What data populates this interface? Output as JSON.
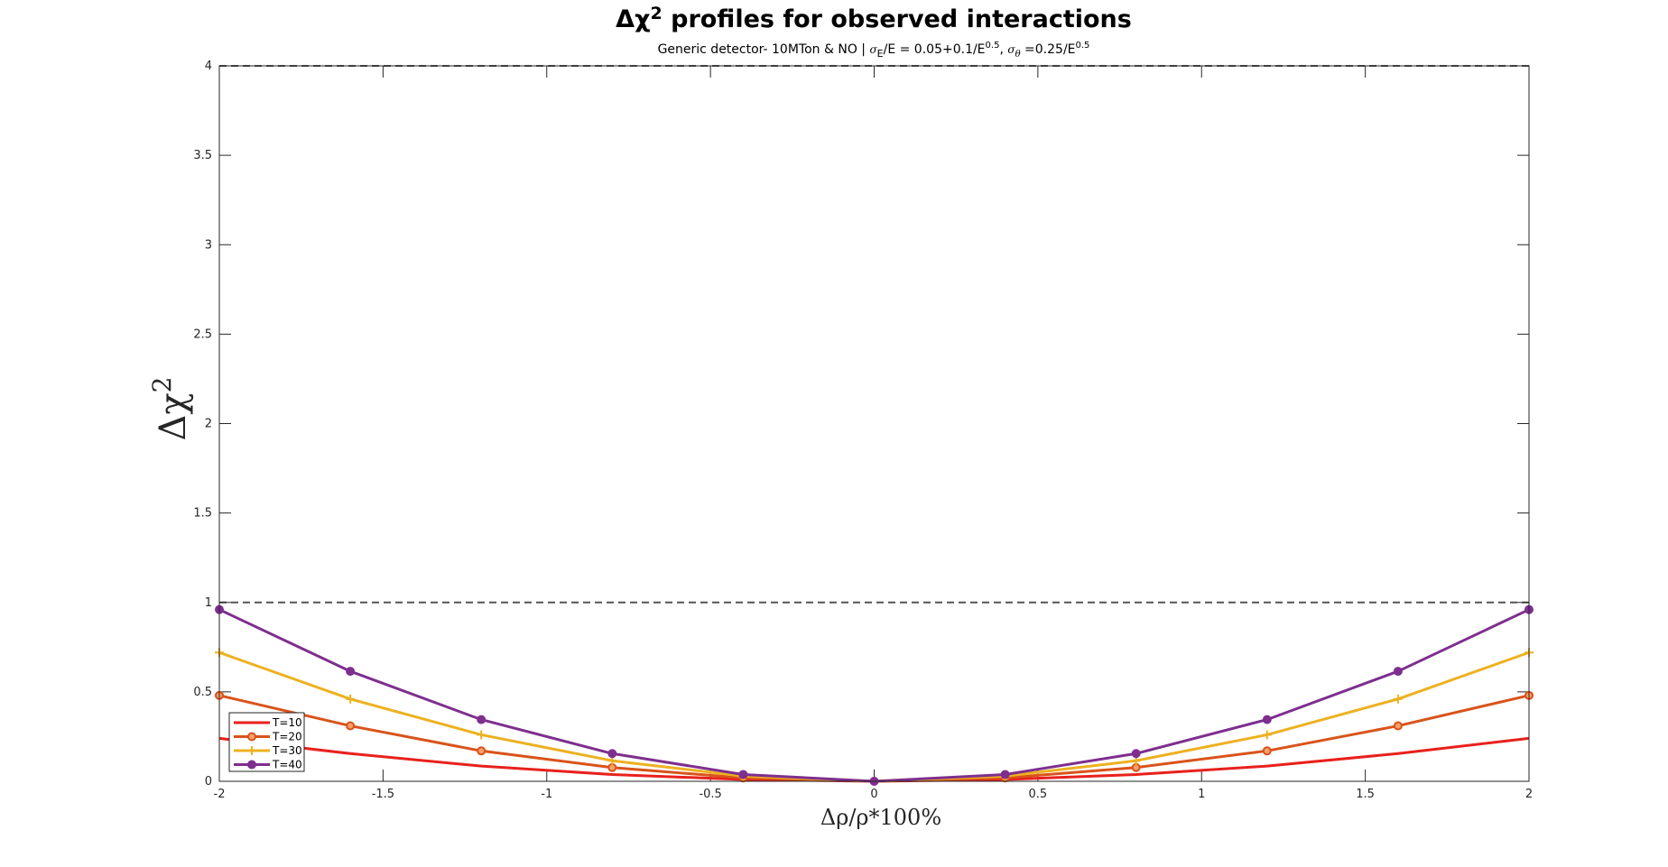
{
  "chart_data": {
    "type": "line",
    "title_prefix": "Δχ",
    "title_sup": "2",
    "title_rest": " profiles for observed interactions",
    "subtitle": {
      "part1": "Generic detector- 10MTon & NO | ",
      "sigma": "σ",
      "sub_E": "E",
      "part2": "/E = 0.05+0.1/E",
      "sup1": "0.5",
      "part3": ", ",
      "sub_theta": "θ",
      "part4": " =0.25/E",
      "sup2": "0.5"
    },
    "xlabel": "Δρ/ρ*100%",
    "ylabel": "Δχ",
    "ylabel_sup": "2",
    "xlim": [
      -2,
      2
    ],
    "ylim": [
      0,
      4
    ],
    "xticks": [
      -2,
      -1.5,
      -1,
      -0.5,
      0,
      0.5,
      1,
      1.5,
      2
    ],
    "xtick_labels": [
      "-2",
      "-1.5",
      "-1",
      "-0.5",
      "0",
      "0.5",
      "1",
      "1.5",
      "2"
    ],
    "yticks": [
      0,
      0.5,
      1,
      1.5,
      2,
      2.5,
      3,
      3.5,
      4
    ],
    "ytick_labels": [
      "0",
      "0.5",
      "1",
      "1.5",
      "2",
      "2.5",
      "3",
      "3.5",
      "4"
    ],
    "reference_lines": [
      1,
      4
    ],
    "legend_position": "bottom-left",
    "x": [
      -2,
      -1.6,
      -1.2,
      -0.8,
      -0.4,
      0,
      0.4,
      0.8,
      1.2,
      1.6,
      2
    ],
    "series": [
      {
        "name": "T=10",
        "color": "#e8211c",
        "marker": "none",
        "values": [
          0.24,
          0.155,
          0.085,
          0.038,
          0.01,
          0,
          0.01,
          0.038,
          0.085,
          0.155,
          0.24
        ]
      },
      {
        "name": "T=20",
        "color": "#d95319",
        "marker": "circle",
        "values": [
          0.48,
          0.31,
          0.17,
          0.077,
          0.019,
          0,
          0.019,
          0.077,
          0.17,
          0.31,
          0.48
        ]
      },
      {
        "name": "T=30",
        "color": "#edb120",
        "marker": "plus",
        "values": [
          0.72,
          0.46,
          0.26,
          0.115,
          0.029,
          0,
          0.029,
          0.115,
          0.26,
          0.46,
          0.72
        ]
      },
      {
        "name": "T=40",
        "color": "#7e2f8e",
        "marker": "dot",
        "values": [
          0.96,
          0.615,
          0.345,
          0.155,
          0.038,
          0,
          0.038,
          0.155,
          0.345,
          0.615,
          0.96
        ]
      }
    ]
  }
}
